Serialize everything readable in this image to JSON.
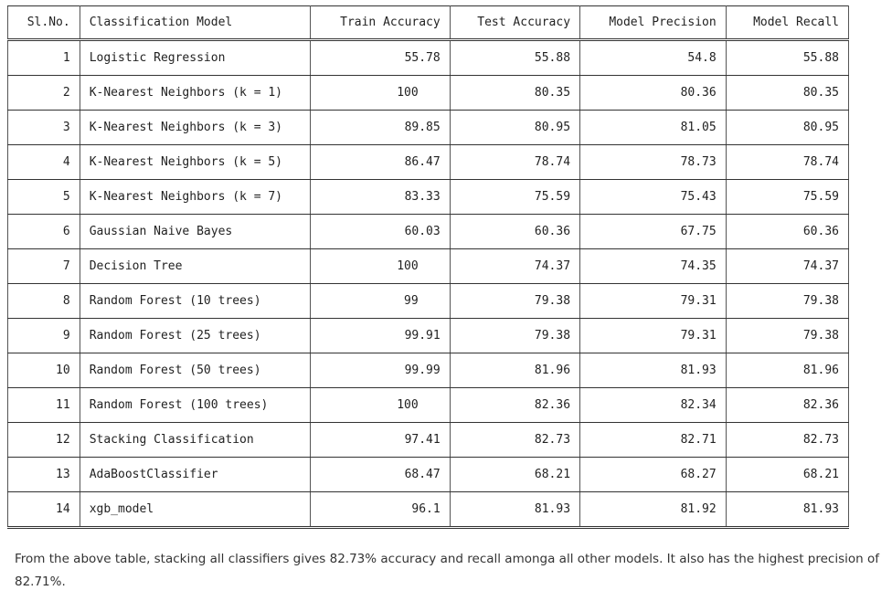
{
  "table": {
    "headers": [
      "Sl.No.",
      "Classification Model",
      "Train Accuracy",
      "Test Accuracy",
      "Model Precision",
      "Model Recall"
    ],
    "rows": [
      [
        "1",
        "Logistic Regression",
        "55.78",
        "55.88",
        "54.8",
        "55.88"
      ],
      [
        "2",
        "K-Nearest Neighbors (k = 1)",
        "100",
        "80.35",
        "80.36",
        "80.35"
      ],
      [
        "3",
        "K-Nearest Neighbors (k = 3)",
        "89.85",
        "80.95",
        "81.05",
        "80.95"
      ],
      [
        "4",
        "K-Nearest Neighbors (k = 5)",
        "86.47",
        "78.74",
        "78.73",
        "78.74"
      ],
      [
        "5",
        "K-Nearest Neighbors (k = 7)",
        "83.33",
        "75.59",
        "75.43",
        "75.59"
      ],
      [
        "6",
        "Gaussian Naive Bayes",
        "60.03",
        "60.36",
        "67.75",
        "60.36"
      ],
      [
        "7",
        "Decision Tree",
        "100",
        "74.37",
        "74.35",
        "74.37"
      ],
      [
        "8",
        "Random Forest (10 trees)",
        "99",
        "79.38",
        "79.31",
        "79.38"
      ],
      [
        "9",
        "Random Forest (25 trees)",
        "99.91",
        "79.38",
        "79.31",
        "79.38"
      ],
      [
        "10",
        "Random Forest (50 trees)",
        "99.99",
        "81.96",
        "81.93",
        "81.96"
      ],
      [
        "11",
        "Random Forest (100 trees)",
        "100",
        "82.36",
        "82.34",
        "82.36"
      ],
      [
        "12",
        "Stacking Classification",
        "97.41",
        "82.73",
        "82.71",
        "82.73"
      ],
      [
        "13",
        "AdaBoostClassifier",
        "68.47",
        "68.21",
        "68.27",
        "68.21"
      ],
      [
        "14",
        "xgb_model",
        "96.1",
        "81.93",
        "81.92",
        "81.93"
      ]
    ]
  },
  "note": "From the above table, stacking all classifiers gives 82.73% accuracy and recall amonga all other models. It also has the highest precision of 82.71%."
}
